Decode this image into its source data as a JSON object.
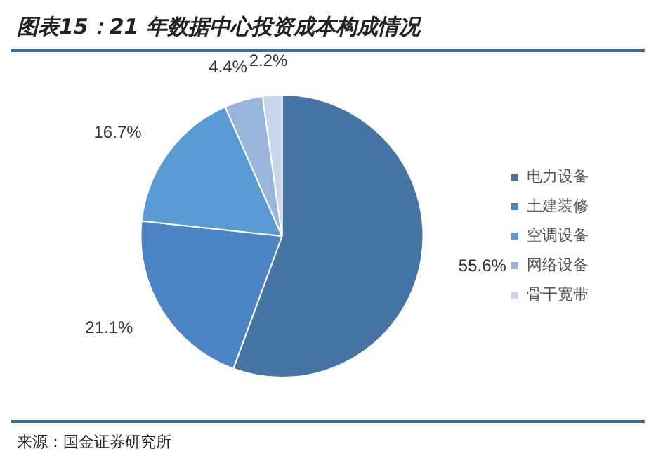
{
  "chart_data": {
    "type": "pie",
    "title": "图表15：21 年数据中心投资成本构成情况",
    "categories": [
      "电力设备",
      "土建装修",
      "空调设备",
      "网络设备",
      "骨干宽带"
    ],
    "values": [
      55.6,
      21.1,
      16.7,
      4.4,
      2.2
    ],
    "value_labels": [
      "55.6%",
      "21.1%",
      "16.7%",
      "4.4%",
      "2.2%"
    ],
    "colors": [
      "#4674a4",
      "#4c84c4",
      "#5b9bd5",
      "#9ab5dc",
      "#c9d6ec"
    ],
    "legend": "right",
    "annotations": [
      "来源：国金证券研究所"
    ]
  }
}
